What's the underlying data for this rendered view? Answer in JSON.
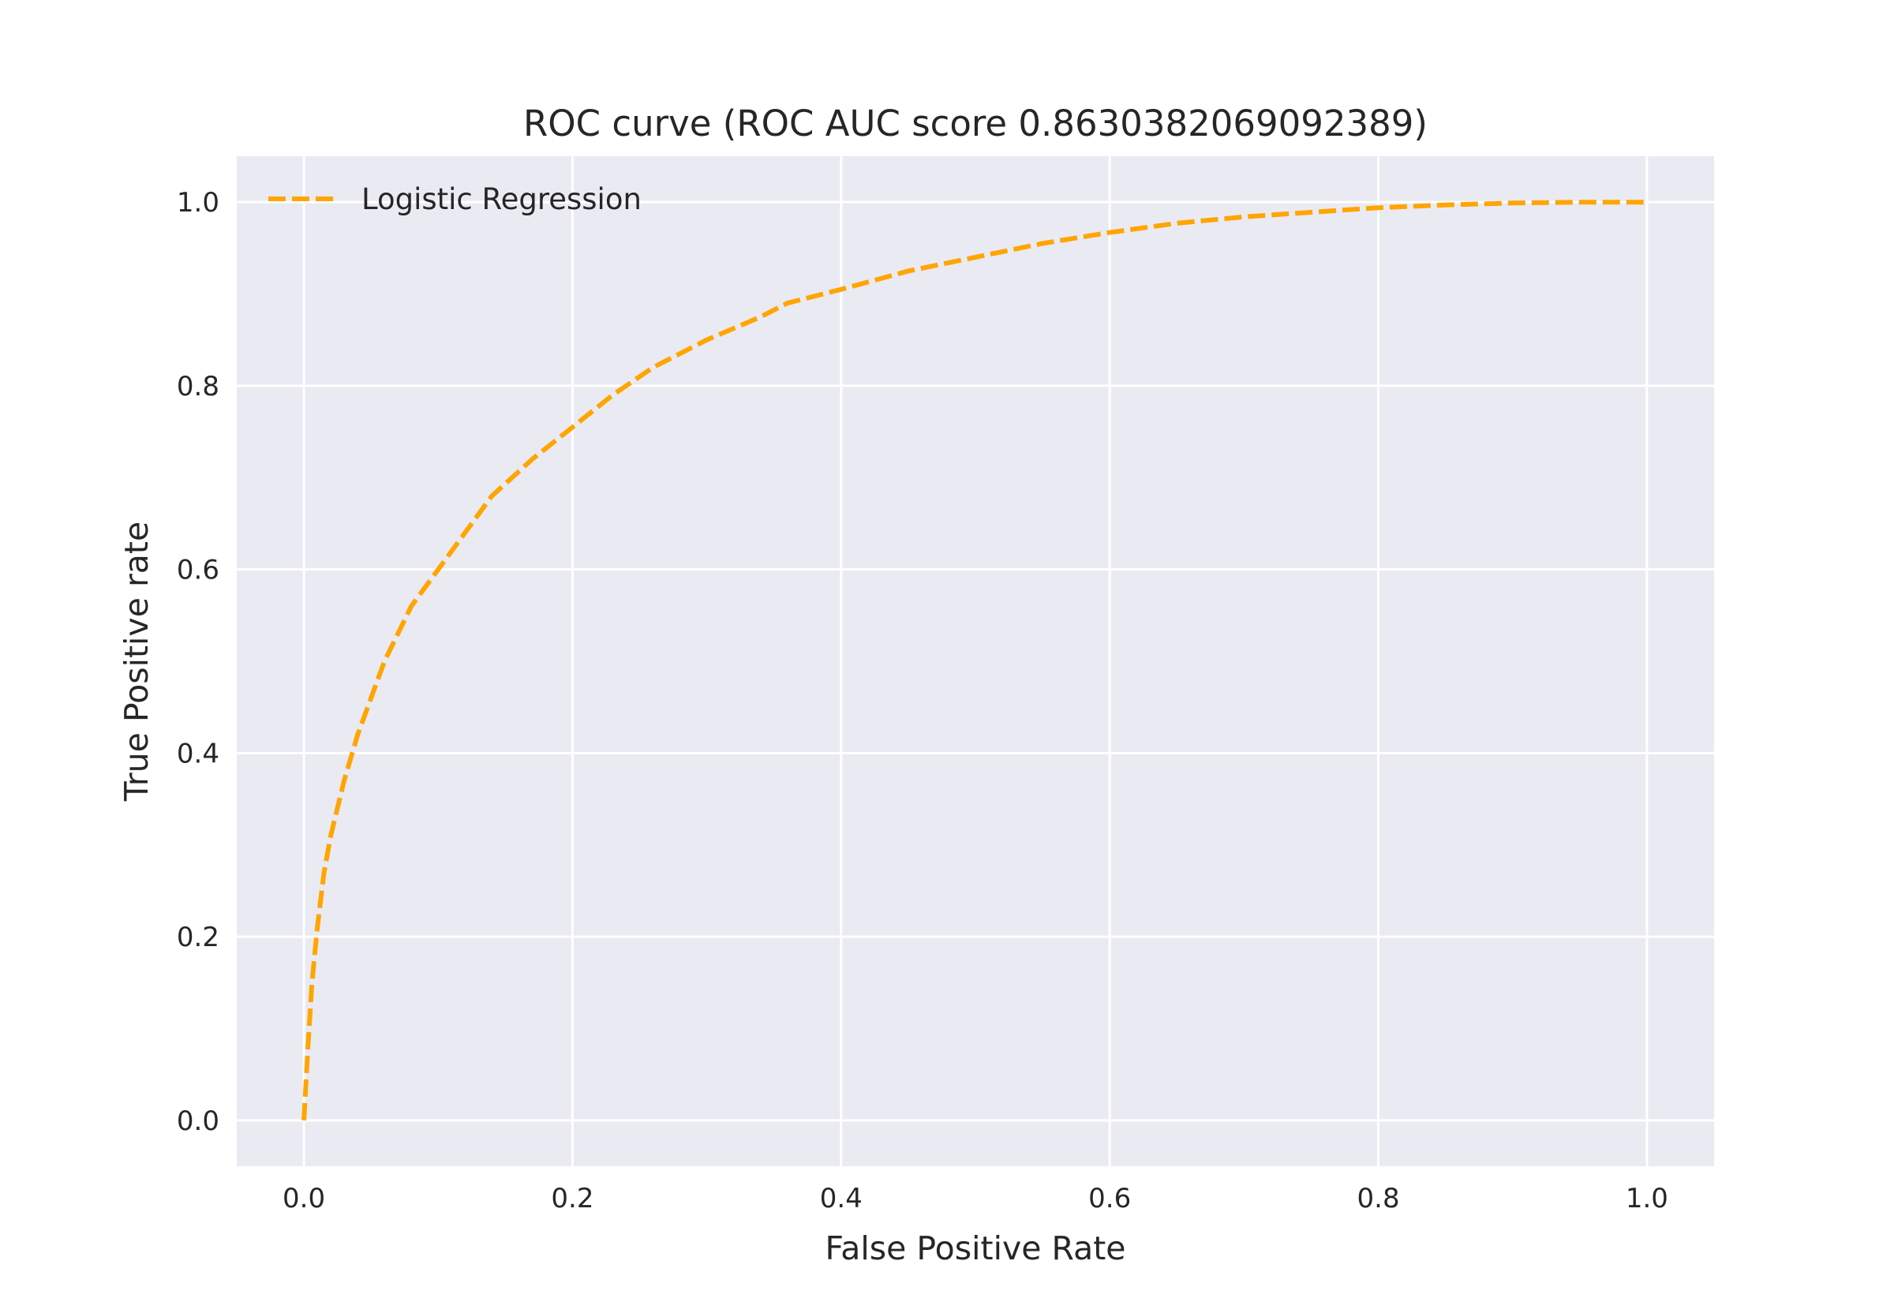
{
  "chart_data": {
    "type": "line",
    "title": "ROC curve (ROC AUC score 0.8630382069092389)",
    "xlabel": "False Positive Rate",
    "ylabel": "True Positive rate",
    "xlim": [
      -0.05,
      1.05
    ],
    "ylim": [
      -0.05,
      1.05
    ],
    "xticks": [
      "0.0",
      "0.2",
      "0.4",
      "0.6",
      "0.8",
      "1.0"
    ],
    "yticks": [
      "0.0",
      "0.2",
      "0.4",
      "0.6",
      "0.8",
      "1.0"
    ],
    "grid": true,
    "legend_position": "top-left",
    "background_color": "#eaeaf2",
    "grid_color": "#ffffff",
    "series": [
      {
        "name": "Logistic Regression",
        "color": "#ffa500",
        "line_style": "dashed",
        "x": [
          0.0,
          0.003,
          0.006,
          0.01,
          0.015,
          0.02,
          0.03,
          0.04,
          0.05,
          0.06,
          0.08,
          0.1,
          0.12,
          0.14,
          0.17,
          0.2,
          0.23,
          0.26,
          0.3,
          0.34,
          0.36,
          0.4,
          0.45,
          0.5,
          0.55,
          0.6,
          0.65,
          0.7,
          0.75,
          0.8,
          0.85,
          0.9,
          0.95,
          1.0
        ],
        "y": [
          0.0,
          0.08,
          0.15,
          0.21,
          0.27,
          0.31,
          0.37,
          0.42,
          0.46,
          0.5,
          0.56,
          0.6,
          0.64,
          0.68,
          0.72,
          0.755,
          0.79,
          0.82,
          0.85,
          0.875,
          0.89,
          0.905,
          0.925,
          0.94,
          0.955,
          0.967,
          0.977,
          0.984,
          0.989,
          0.994,
          0.997,
          0.999,
          1.0,
          1.0
        ]
      }
    ]
  }
}
